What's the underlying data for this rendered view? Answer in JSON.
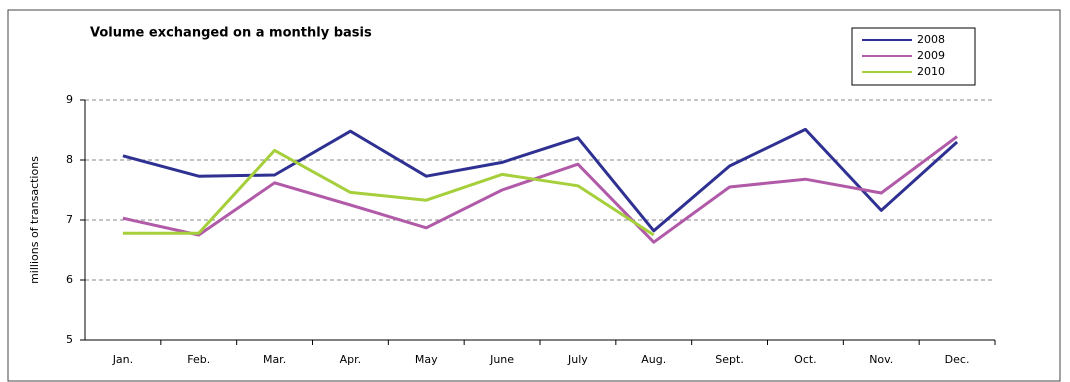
{
  "chart_data": {
    "type": "line",
    "title": "Volume exchanged on a monthly basis",
    "y_label": "millions of transactions",
    "categories": [
      "Jan.",
      "Feb.",
      "Mar.",
      "Apr.",
      "May",
      "June",
      "July",
      "Aug.",
      "Sept.",
      "Oct.",
      "Nov.",
      "Dec."
    ],
    "series": [
      {
        "name": "2008",
        "color": "#2e3192",
        "values": [
          8.07,
          7.73,
          7.75,
          8.48,
          7.73,
          7.96,
          8.37,
          6.82,
          7.9,
          8.51,
          7.16,
          8.3
        ]
      },
      {
        "name": "2009",
        "color": "#b05aa8",
        "values": [
          7.03,
          6.75,
          7.62,
          7.25,
          6.87,
          7.5,
          7.93,
          6.63,
          7.55,
          7.68,
          7.45,
          8.39
        ]
      },
      {
        "name": "2010",
        "color": "#a6cf3c",
        "values": [
          6.78,
          6.78,
          8.16,
          7.46,
          7.33,
          7.76,
          7.57,
          6.75,
          null,
          null,
          null,
          null
        ]
      }
    ],
    "ylim": [
      5,
      9
    ],
    "yticks": [
      5,
      6,
      7,
      8,
      9
    ],
    "grid": true,
    "legend": "top-right"
  }
}
